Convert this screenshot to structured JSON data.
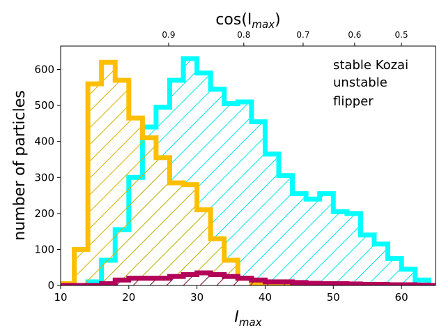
{
  "chart_data": {
    "type": "histogram",
    "title": "",
    "xlabel": "I",
    "xlabel_sub": "max",
    "ylabel": "number of particles",
    "top_xlabel": "cos(I",
    "top_xlabel_sub": "max",
    "top_xlabel_close": ")",
    "xlim": [
      10,
      65
    ],
    "ylim": [
      0,
      665
    ],
    "x_ticks": [
      10,
      20,
      30,
      40,
      50,
      60
    ],
    "y_ticks": [
      0,
      100,
      200,
      300,
      400,
      500,
      600
    ],
    "top_ticks": [
      0.9,
      0.8,
      0.7,
      0.6,
      0.5
    ],
    "top_tick_labels": [
      "0.9",
      "0.8",
      "0.7",
      "0.6",
      "0.5"
    ],
    "bin_edges": [
      0,
      2,
      4,
      6,
      8,
      10,
      12,
      14,
      16,
      18,
      20,
      22,
      24,
      26,
      28,
      30,
      32,
      34,
      36,
      38,
      40,
      42,
      44,
      46,
      48,
      50,
      52,
      54,
      56,
      58,
      60,
      62,
      64,
      66
    ],
    "series": [
      {
        "name": "stable Kozai",
        "color": "#00ffff",
        "hatch": "/",
        "values": [
          0,
          0,
          0,
          0,
          0,
          0,
          0,
          10,
          70,
          155,
          300,
          440,
          495,
          570,
          630,
          590,
          545,
          505,
          510,
          455,
          365,
          305,
          255,
          240,
          255,
          205,
          200,
          140,
          115,
          75,
          45,
          15,
          0
        ]
      },
      {
        "name": "unstable",
        "color": "#ffbf00",
        "hatch": "/",
        "values": [
          0,
          0,
          0,
          0,
          0,
          5,
          100,
          560,
          620,
          570,
          465,
          410,
          355,
          285,
          280,
          210,
          130,
          70,
          20,
          5,
          0,
          0,
          0,
          0,
          0,
          0,
          0,
          0,
          0,
          0,
          0,
          0,
          0
        ]
      },
      {
        "name": "flipper",
        "color": "#b30059",
        "hatch": "/",
        "values": [
          0,
          0,
          0,
          0,
          0,
          0,
          0,
          0,
          5,
          15,
          20,
          20,
          20,
          25,
          30,
          35,
          30,
          25,
          20,
          15,
          10,
          10,
          8,
          6,
          5,
          5,
          4,
          3,
          3,
          2,
          2,
          1,
          0
        ]
      }
    ],
    "legend": [
      "stable Kozai",
      "unstable",
      "flipper"
    ],
    "legend_position": "top-right"
  }
}
